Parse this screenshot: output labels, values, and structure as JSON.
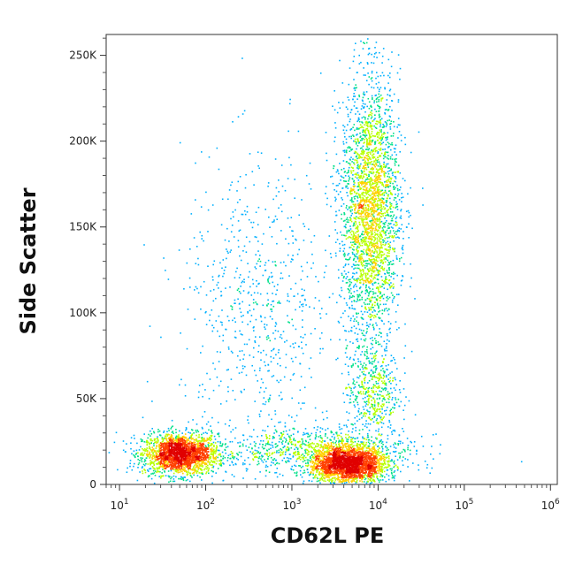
{
  "chart_data": {
    "type": "scatter",
    "subtype": "flow-cytometry-density-dot-plot",
    "xlabel": "CD62L PE",
    "ylabel": "Side Scatter",
    "x_scale": "log",
    "xlim": [
      7,
      1200000
    ],
    "ylim": [
      0,
      262144
    ],
    "grid": false,
    "x_ticks": [
      {
        "value": 10,
        "base": "10",
        "exp": "1"
      },
      {
        "value": 100,
        "base": "10",
        "exp": "2"
      },
      {
        "value": 1000,
        "base": "10",
        "exp": "3"
      },
      {
        "value": 10000,
        "base": "10",
        "exp": "4"
      },
      {
        "value": 100000,
        "base": "10",
        "exp": "5"
      },
      {
        "value": 1000000,
        "base": "10",
        "exp": "6"
      }
    ],
    "y_ticks": [
      {
        "value": 0,
        "label": "0"
      },
      {
        "value": 50000,
        "label": "50K"
      },
      {
        "value": 100000,
        "label": "100K"
      },
      {
        "value": 150000,
        "label": "150K"
      },
      {
        "value": 200000,
        "label": "200K"
      },
      {
        "value": 250000,
        "label": "250K"
      }
    ],
    "density_colors": [
      "#0000ff",
      "#00b0ff",
      "#00e08a",
      "#b6ff00",
      "#ffd000",
      "#ff4000",
      "#e00000"
    ],
    "populations": [
      {
        "x_center": 50,
        "y_center": 18000,
        "n": 2200
      },
      {
        "x_center": 4500,
        "y_center": 12000,
        "n": 2300
      },
      {
        "x_center": 8000,
        "y_center": 160000,
        "n": 2800
      },
      {
        "x_center": 8500,
        "y_center": 55000,
        "n": 500
      },
      {
        "x_center": 400,
        "y_center": 100000,
        "n": 700
      },
      {
        "x_center": 2000,
        "y_center": 20000,
        "n": 900
      }
    ]
  }
}
